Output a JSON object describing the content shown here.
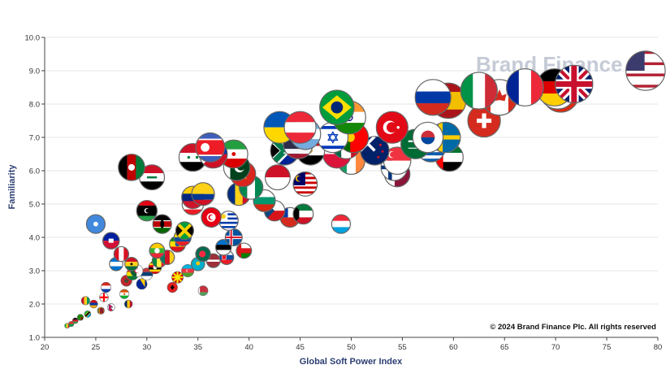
{
  "watermark": "Brand Finance",
  "copyright": "© 2024 Brand Finance Plc. All rights reserved",
  "colors": {
    "axis_title": "#2c3e72",
    "grid": "#e6e6e6",
    "bubble_border": "#666666"
  },
  "chart_data": {
    "type": "scatter",
    "xlabel": "Global Soft Power Index",
    "ylabel": "Familiarity",
    "xlim": [
      20,
      80
    ],
    "ylim": [
      1.0,
      10.0
    ],
    "x_ticks": [
      20,
      25,
      30,
      35,
      40,
      45,
      50,
      55,
      60,
      65,
      70,
      75,
      80
    ],
    "y_ticks": [
      "1.0",
      "2.0",
      "3.0",
      "4.0",
      "5.0",
      "6.0",
      "7.0",
      "8.0",
      "9.0",
      "10.0"
    ],
    "grid": "horizontal",
    "marker": "country flag",
    "points": [
      {
        "flag": "us",
        "x": 78.8,
        "y": 9.0
      },
      {
        "flag": "gb",
        "x": 71.8,
        "y": 8.6
      },
      {
        "flag": "cn",
        "x": 70.5,
        "y": 8.3
      },
      {
        "flag": "de",
        "x": 69.9,
        "y": 8.5
      },
      {
        "flag": "fr",
        "x": 67.0,
        "y": 8.5
      },
      {
        "flag": "jp",
        "x": 70.2,
        "y": 8.4
      },
      {
        "flag": "ca",
        "x": 64.5,
        "y": 8.2
      },
      {
        "flag": "it",
        "x": 62.5,
        "y": 8.4
      },
      {
        "flag": "ch",
        "x": 63.0,
        "y": 7.5
      },
      {
        "flag": "es",
        "x": 59.5,
        "y": 8.1
      },
      {
        "flag": "ru",
        "x": 58.0,
        "y": 8.2
      },
      {
        "flag": "ae",
        "x": 59.6,
        "y": 6.4
      },
      {
        "flag": "se",
        "x": 59.2,
        "y": 7.0
      },
      {
        "flag": "kr",
        "x": 57.5,
        "y": 7.0
      },
      {
        "flag": "sa",
        "x": 56.3,
        "y": 6.8
      },
      {
        "flag": "tr",
        "x": 54.0,
        "y": 7.3
      },
      {
        "flag": "gr",
        "x": 57.8,
        "y": 6.7
      },
      {
        "flag": "sg",
        "x": 54.5,
        "y": 6.3
      },
      {
        "flag": "qa",
        "x": 54.5,
        "y": 5.9
      },
      {
        "flag": "nz",
        "x": 52.3,
        "y": 6.6
      },
      {
        "flag": "fi",
        "x": 54.2,
        "y": 6.1
      },
      {
        "flag": "br",
        "x": 48.6,
        "y": 7.9
      },
      {
        "flag": "in",
        "x": 49.8,
        "y": 7.6
      },
      {
        "flag": "pt",
        "x": 50.2,
        "y": 7.0
      },
      {
        "flag": "il",
        "x": 48.2,
        "y": 7.0
      },
      {
        "flag": "mx",
        "x": 49.5,
        "y": 6.8
      },
      {
        "flag": "pl",
        "x": 48.6,
        "y": 6.5
      },
      {
        "flag": "ie",
        "x": 50.0,
        "y": 6.3
      },
      {
        "flag": "eg",
        "x": 46.0,
        "y": 6.6
      },
      {
        "flag": "ua",
        "x": 43.0,
        "y": 7.3
      },
      {
        "flag": "at",
        "x": 45.0,
        "y": 7.3
      },
      {
        "flag": "ar",
        "x": 45.5,
        "y": 7.1
      },
      {
        "flag": "th",
        "x": 44.8,
        "y": 6.8
      },
      {
        "flag": "za",
        "x": 43.5,
        "y": 6.6
      },
      {
        "flag": "id",
        "x": 42.8,
        "y": 5.8
      },
      {
        "flag": "my",
        "x": 45.5,
        "y": 5.6
      },
      {
        "flag": "lu",
        "x": 49.0,
        "y": 4.4
      },
      {
        "flag": "kw",
        "x": 45.3,
        "y": 4.7
      },
      {
        "flag": "cz",
        "x": 42.5,
        "y": 4.8
      },
      {
        "flag": "cl",
        "x": 44.0,
        "y": 4.6
      },
      {
        "flag": "pk",
        "x": 38.8,
        "y": 6.1
      },
      {
        "flag": "vn",
        "x": 39.4,
        "y": 5.9
      },
      {
        "flag": "ng",
        "x": 40.2,
        "y": 5.5
      },
      {
        "flag": "ir",
        "x": 38.5,
        "y": 6.5
      },
      {
        "flag": "kp",
        "x": 36.2,
        "y": 6.7
      },
      {
        "flag": "ph",
        "x": 36.5,
        "y": 6.5
      },
      {
        "flag": "sy",
        "x": 34.5,
        "y": 6.4
      },
      {
        "flag": "iq",
        "x": 30.5,
        "y": 5.8
      },
      {
        "flag": "af",
        "x": 28.5,
        "y": 6.1
      },
      {
        "flag": "ro",
        "x": 39.0,
        "y": 5.3
      },
      {
        "flag": "bg",
        "x": 41.5,
        "y": 5.1
      },
      {
        "flag": "co",
        "x": 35.5,
        "y": 5.3
      },
      {
        "flag": "lb",
        "x": 34.5,
        "y": 5.0
      },
      {
        "flag": "ly",
        "x": 30.0,
        "y": 4.8
      },
      {
        "flag": "tn",
        "x": 36.3,
        "y": 4.6
      },
      {
        "flag": "uy",
        "x": 38.0,
        "y": 4.5
      },
      {
        "flag": "jm",
        "x": 33.7,
        "y": 4.2
      },
      {
        "flag": "is",
        "x": 38.5,
        "y": 4.0
      },
      {
        "flag": "ee",
        "x": 37.5,
        "y": 3.7
      },
      {
        "flag": "om",
        "x": 39.5,
        "y": 3.6
      },
      {
        "flag": "sk",
        "x": 37.8,
        "y": 3.4
      },
      {
        "flag": "lv",
        "x": 36.5,
        "y": 3.3
      },
      {
        "flag": "bd",
        "x": 35.5,
        "y": 3.5
      },
      {
        "flag": "et",
        "x": 33.0,
        "y": 3.8
      },
      {
        "flag": "ke",
        "x": 31.5,
        "y": 4.4
      },
      {
        "flag": "so",
        "x": 25.0,
        "y": 4.4
      },
      {
        "flag": "mm",
        "x": 31.0,
        "y": 3.6
      },
      {
        "flag": "gh",
        "x": 28.5,
        "y": 3.2
      },
      {
        "flag": "mk",
        "x": 33.0,
        "y": 2.8
      },
      {
        "flag": "al",
        "x": 32.5,
        "y": 2.5
      },
      {
        "flag": "by",
        "x": 35.5,
        "y": 2.4
      },
      {
        "flag": "rs",
        "x": 30.0,
        "y": 2.9
      },
      {
        "flag": "az",
        "x": 34.0,
        "y": 3.0
      },
      {
        "flag": "kz",
        "x": 35.0,
        "y": 3.2
      },
      {
        "flag": "ba",
        "x": 29.5,
        "y": 2.6
      },
      {
        "flag": "ht",
        "x": 26.5,
        "y": 3.9
      },
      {
        "flag": "pe",
        "x": 27.5,
        "y": 3.5
      },
      {
        "flag": "ve",
        "x": 34.5,
        "y": 5.2
      },
      {
        "flag": "ec",
        "x": 33.5,
        "y": 4.0
      },
      {
        "flag": "hn",
        "x": 27.0,
        "y": 3.2
      },
      {
        "flag": "ma",
        "x": 28.0,
        "y": 2.7
      },
      {
        "flag": "dz",
        "x": 29.0,
        "y": 3.0
      },
      {
        "flag": "sn",
        "x": 31.2,
        "y": 3.3
      },
      {
        "flag": "ug",
        "x": 30.8,
        "y": 3.1
      },
      {
        "flag": "cm",
        "x": 32.0,
        "y": 3.4
      },
      {
        "flag": "bo",
        "x": 28.6,
        "y": 2.9
      },
      {
        "flag": "py",
        "x": 26.0,
        "y": 2.5
      },
      {
        "flag": "ge",
        "x": 25.8,
        "y": 2.2
      },
      {
        "flag": "am",
        "x": 24.8,
        "y": 2.0
      },
      {
        "flag": "np",
        "x": 26.5,
        "y": 1.9
      },
      {
        "flag": "lk",
        "x": 25.5,
        "y": 1.8
      },
      {
        "flag": "tz",
        "x": 24.2,
        "y": 1.7
      },
      {
        "flag": "zm",
        "x": 23.5,
        "y": 1.6
      },
      {
        "flag": "mw",
        "x": 23.0,
        "y": 1.5
      },
      {
        "flag": "bf",
        "x": 22.6,
        "y": 1.4
      },
      {
        "flag": "ml",
        "x": 22.2,
        "y": 1.35
      },
      {
        "flag": "gn",
        "x": 24.0,
        "y": 2.1
      },
      {
        "flag": "ne",
        "x": 27.8,
        "y": 2.3
      },
      {
        "flag": "td",
        "x": 28.2,
        "y": 2.0
      }
    ]
  }
}
